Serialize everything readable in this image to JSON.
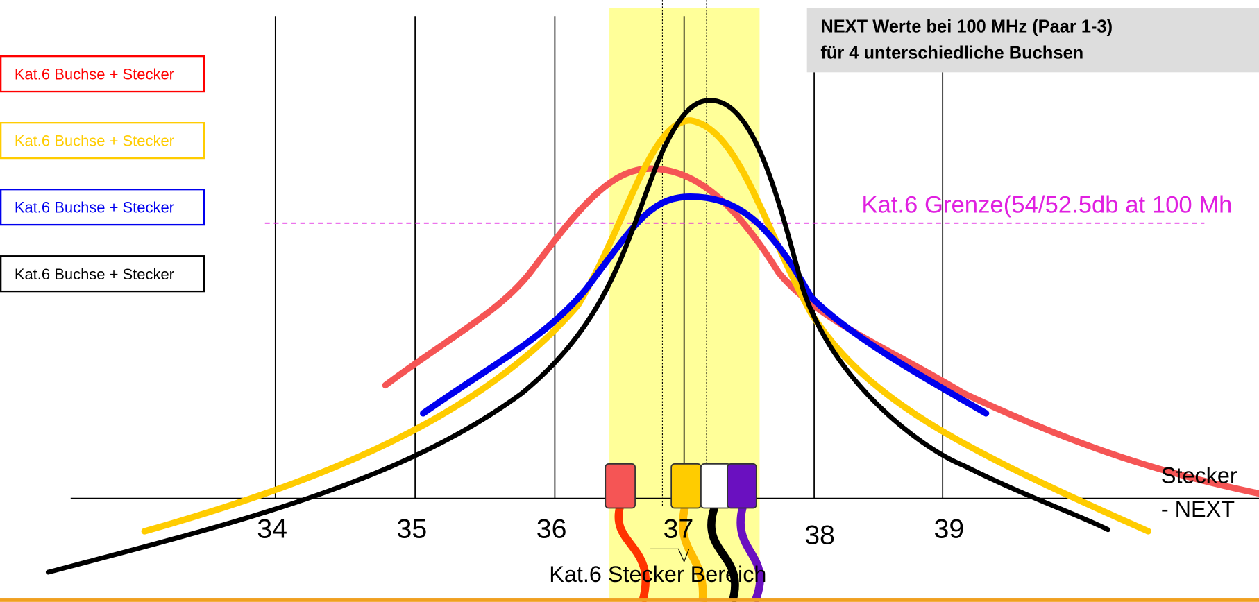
{
  "title": {
    "line1": "NEXT Werte bei 100 MHz (Paar 1-3)",
    "line2": "für 4 unterschiedliche Buchsen"
  },
  "legend": [
    "Kat.6 Buchse + Stecker",
    "Kat.6 Buchse + Stecker",
    "Kat.6 Buchse + Stecker",
    "Kat.6 Buchse + Stecker"
  ],
  "x_ticks": [
    "34",
    "35",
    "36",
    "37",
    "38",
    "39"
  ],
  "limit_label": "Kat.6 Grenze(54/52.5db at 100 Mh",
  "axis_label": {
    "line1": "Stecker",
    "line2": "- NEXT"
  },
  "range_label": "Kat.6 Stecker Bereich"
}
